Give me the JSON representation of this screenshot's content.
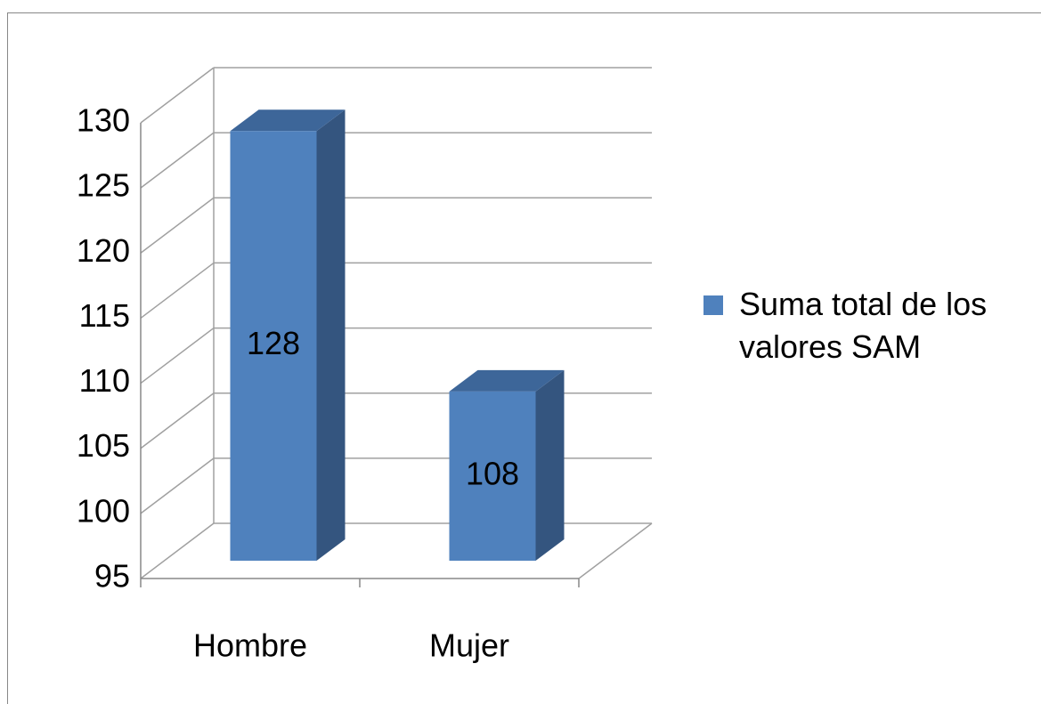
{
  "chart_data": {
    "type": "bar3d",
    "categories": [
      "Hombre",
      "Mujer"
    ],
    "series": [
      {
        "name": "Suma total de los valores SAM",
        "color": "#4f81bd",
        "values": [
          128,
          108
        ]
      }
    ],
    "ylim": [
      95,
      130
    ],
    "yticks": [
      95,
      100,
      105,
      110,
      115,
      120,
      125,
      130
    ],
    "grid": true,
    "legend": "right"
  }
}
